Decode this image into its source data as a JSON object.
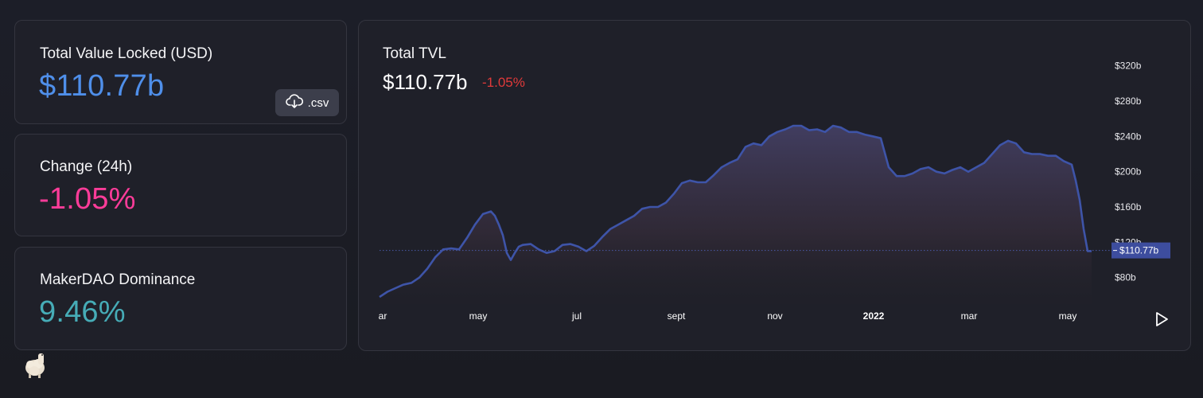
{
  "stats": {
    "tvl": {
      "label": "Total Value Locked (USD)",
      "value": "$110.77b",
      "color": "#4f8fea"
    },
    "change": {
      "label": "Change (24h)",
      "value": "-1.05%",
      "color": "#fd3c99"
    },
    "dominance": {
      "label": "MakerDAO Dominance",
      "value": "9.46%",
      "color": "#46acb7"
    }
  },
  "csv_button": {
    "label": ".csv",
    "icon": "cloud-download-icon"
  },
  "chart_header": {
    "title": "Total TVL",
    "value": "$110.77b",
    "change": "-1.05%",
    "change_color": "#e03a3a"
  },
  "chart_data": {
    "type": "area",
    "title": "Total TVL",
    "x_ticks": [
      "ar",
      "may",
      "jul",
      "sept",
      "nov",
      "2022",
      "mar",
      "may"
    ],
    "x_ticks_bold": [
      "2022"
    ],
    "y_ticks": [
      "$80b",
      "$120b",
      "$160b",
      "$200b",
      "$240b",
      "$280b",
      "$320b"
    ],
    "y_tick_values": [
      80,
      120,
      160,
      200,
      240,
      280,
      320
    ],
    "ylim": [
      50,
      335
    ],
    "x_range": [
      0,
      895
    ],
    "current_value_label": "$110.77b",
    "current_value": 110.77,
    "series": [
      {
        "color": "#3e54a8",
        "x": [
          0,
          10,
          20,
          30,
          40,
          50,
          60,
          70,
          80,
          90,
          100,
          110,
          120,
          130,
          140,
          145,
          150,
          155,
          160,
          165,
          170,
          175,
          180,
          190,
          200,
          210,
          220,
          230,
          240,
          250,
          260,
          270,
          280,
          290,
          300,
          310,
          320,
          330,
          340,
          350,
          360,
          370,
          380,
          390,
          400,
          410,
          420,
          430,
          440,
          450,
          460,
          470,
          480,
          490,
          500,
          510,
          520,
          530,
          540,
          550,
          560,
          570,
          580,
          590,
          600,
          610,
          620,
          630,
          640,
          650,
          660,
          670,
          680,
          690,
          700,
          710,
          720,
          730,
          740,
          750,
          760,
          770,
          780,
          790,
          800,
          810,
          820,
          830,
          840,
          850,
          860,
          870,
          875,
          880,
          885,
          890,
          895
        ],
        "y": [
          58,
          64,
          68,
          72,
          74,
          80,
          90,
          103,
          112,
          113,
          112,
          125,
          140,
          152,
          155,
          150,
          140,
          128,
          108,
          100,
          108,
          115,
          117,
          118,
          112,
          108,
          110,
          117,
          118,
          115,
          110,
          116,
          126,
          135,
          140,
          145,
          150,
          158,
          160,
          160,
          165,
          175,
          187,
          190,
          188,
          188,
          196,
          205,
          210,
          214,
          228,
          232,
          230,
          240,
          245,
          248,
          252,
          252,
          247,
          248,
          245,
          252,
          250,
          245,
          245,
          242,
          240,
          238,
          205,
          195,
          195,
          198,
          203,
          205,
          200,
          198,
          202,
          205,
          200,
          205,
          210,
          220,
          230,
          235,
          232,
          222,
          220,
          220,
          218,
          218,
          212,
          208,
          190,
          168,
          135,
          110,
          110
        ]
      }
    ]
  }
}
